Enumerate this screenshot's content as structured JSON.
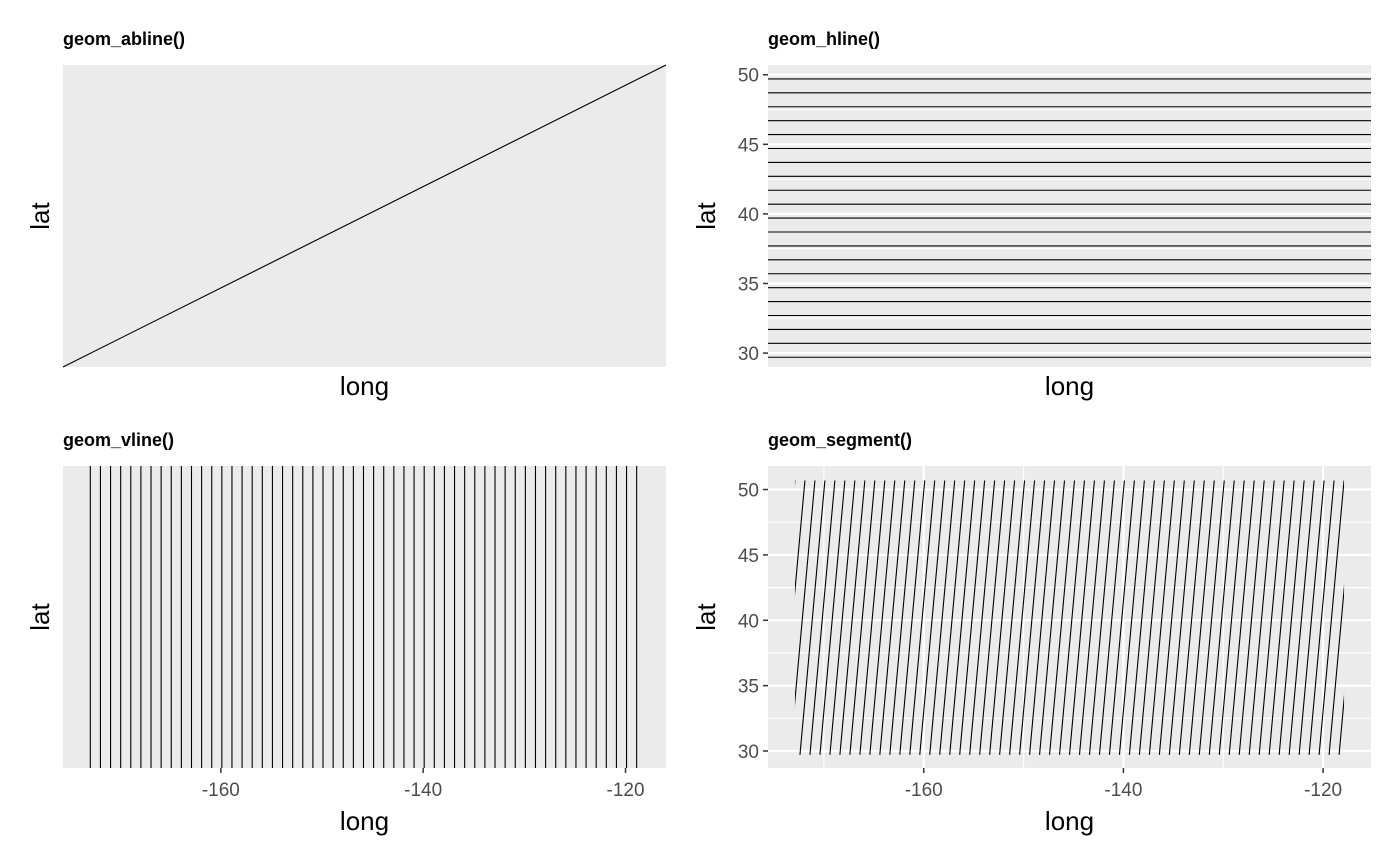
{
  "figure": {
    "background": "#ffffff",
    "panel_background": "#ebebeb",
    "grid_color": "#ffffff",
    "line_color": "#000000",
    "tick_label_color": "#4d4d4d"
  },
  "chart_data": [
    {
      "type": "line",
      "title": "geom_abline()",
      "xlabel": "long",
      "ylabel": "lat",
      "show_x_ticks": false,
      "show_y_ticks": false,
      "grid": false,
      "xlim": [
        0,
        1
      ],
      "ylim": [
        0,
        1
      ],
      "x_ticks": [],
      "y_ticks": [],
      "lines": [
        {
          "x1": 0,
          "y1": 0,
          "x2": 1,
          "y2": 1
        }
      ]
    },
    {
      "type": "line",
      "title": "geom_hline()",
      "xlabel": "long",
      "ylabel": "lat",
      "show_x_ticks": false,
      "show_y_ticks": true,
      "grid": true,
      "xlim": [
        0,
        1
      ],
      "ylim": [
        29,
        50.7
      ],
      "x_ticks": [],
      "y_ticks": [
        30,
        35,
        40,
        45,
        50
      ],
      "hlines": [
        29.7,
        30.7,
        31.7,
        32.7,
        33.7,
        34.7,
        35.7,
        36.7,
        37.7,
        38.7,
        39.7,
        40.7,
        41.7,
        42.7,
        43.7,
        44.7,
        45.7,
        46.7,
        47.7,
        48.7,
        49.7
      ]
    },
    {
      "type": "line",
      "title": "geom_vline()",
      "xlabel": "long",
      "ylabel": "lat",
      "show_x_ticks": true,
      "show_y_ticks": false,
      "grid": false,
      "xlim": [
        -175.6,
        -116
      ],
      "ylim": [
        0,
        1
      ],
      "x_ticks": [
        -160,
        -140,
        -120
      ],
      "y_ticks": [],
      "vlines": [
        -172.9,
        -171.9,
        -170.9,
        -169.9,
        -168.9,
        -167.9,
        -166.9,
        -165.9,
        -164.9,
        -163.9,
        -162.9,
        -161.9,
        -160.9,
        -159.9,
        -158.9,
        -157.9,
        -156.9,
        -155.9,
        -154.9,
        -153.9,
        -152.9,
        -151.9,
        -150.9,
        -149.9,
        -148.9,
        -147.9,
        -146.9,
        -145.9,
        -144.9,
        -143.9,
        -142.9,
        -141.9,
        -140.9,
        -139.9,
        -138.9,
        -137.9,
        -136.9,
        -135.9,
        -134.9,
        -133.9,
        -132.9,
        -131.9,
        -130.9,
        -129.9,
        -128.9,
        -127.9,
        -126.9,
        -125.9,
        -124.9,
        -123.9,
        -122.9,
        -121.9,
        -120.9,
        -119.9,
        -118.9
      ]
    },
    {
      "type": "line",
      "title": "geom_segment()",
      "xlabel": "long",
      "ylabel": "lat",
      "show_x_ticks": true,
      "show_y_ticks": true,
      "grid": true,
      "xlim": [
        -175.6,
        -115.2
      ],
      "ylim": [
        28.7,
        51.8
      ],
      "x_ticks": [
        -160,
        -140,
        -120
      ],
      "y_ticks": [
        30,
        35,
        40,
        45,
        50
      ],
      "segments": {
        "x_start": -172.9,
        "x_end": -117.9,
        "x_step": 1,
        "y_bottom": 29.7,
        "y_top": 50.7,
        "dx": -2.5
      }
    }
  ]
}
